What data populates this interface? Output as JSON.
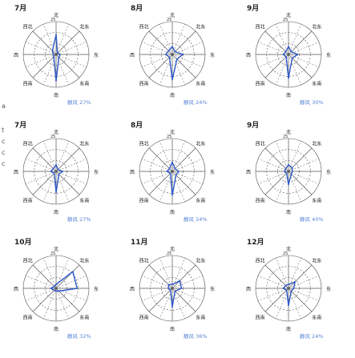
{
  "chart_data": {
    "type": "radar",
    "direction_labels": [
      "北",
      "北东",
      "东",
      "东南",
      "南",
      "西南",
      "西",
      "西北"
    ],
    "scale_max": 25,
    "colors": {
      "wind_rose": "#2d57c8",
      "grid": "#555555",
      "calm_text": "#5a86d6"
    },
    "panels": [
      {
        "title": "7月",
        "calm": "静风 27%",
        "values": [
          15,
          1.5,
          3,
          3,
          20,
          2.5,
          2,
          4
        ]
      },
      {
        "title": "8月",
        "calm": "静风 24%",
        "values": [
          6,
          3,
          8,
          5,
          19,
          3,
          5,
          4
        ]
      },
      {
        "title": "9月",
        "calm": "静风 30%",
        "values": [
          6,
          3,
          7,
          4,
          18,
          2.5,
          4,
          3
        ]
      },
      {
        "title": "7月",
        "calm": "静风 27%",
        "values": [
          5,
          2,
          5,
          3,
          16,
          2,
          4,
          3
        ]
      },
      {
        "title": "8月",
        "calm": "静风 24%",
        "values": [
          7,
          3,
          5,
          4,
          18,
          2,
          4,
          3
        ]
      },
      {
        "title": "9月",
        "calm": "静风 40%",
        "values": [
          5,
          4,
          3,
          3,
          10,
          2,
          3,
          3
        ]
      },
      {
        "title": "10月",
        "calm": "静风 32%",
        "values": [
          3,
          18,
          16,
          3,
          2,
          2,
          4,
          2
        ]
      },
      {
        "title": "11月",
        "calm": "静风 36%",
        "values": [
          3,
          8,
          7,
          3,
          14,
          2,
          3,
          4
        ]
      },
      {
        "title": "12月",
        "calm": "静风 24%",
        "values": [
          3,
          7,
          4,
          3,
          13,
          2,
          4,
          3
        ]
      }
    ]
  },
  "side_marks": [
    "a",
    "t",
    "c",
    "c",
    "c"
  ]
}
